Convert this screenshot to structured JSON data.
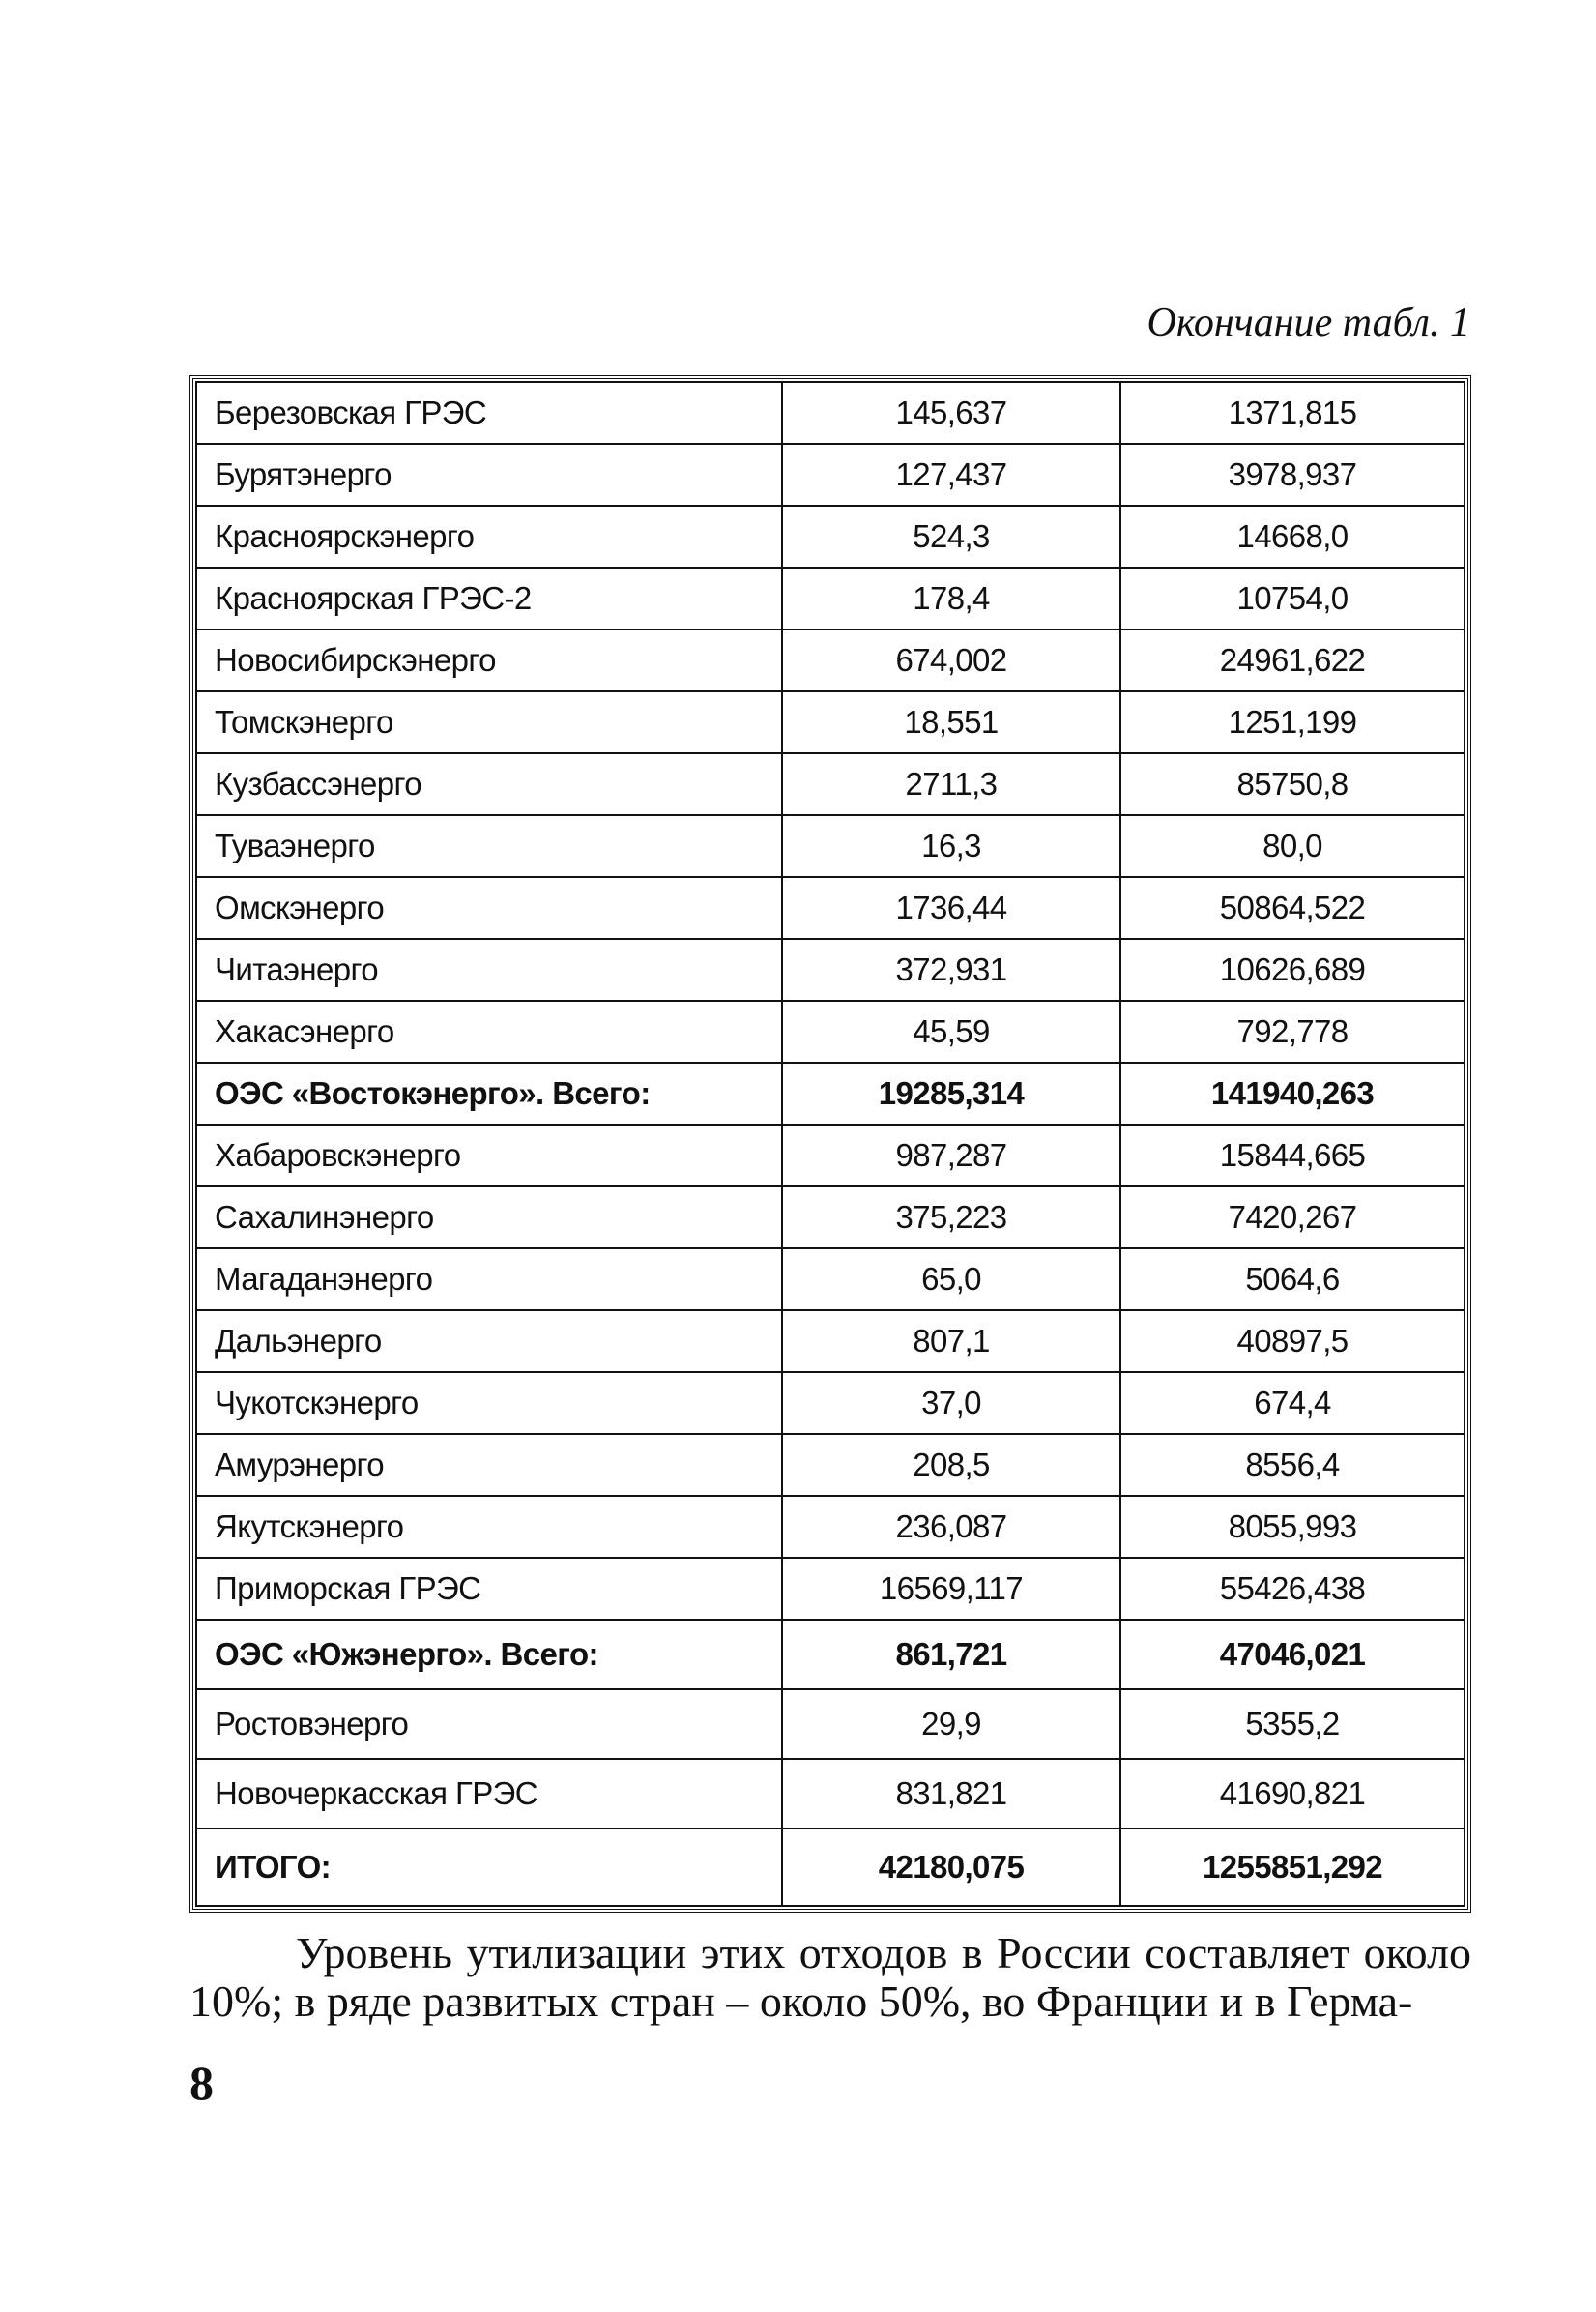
{
  "caption": "Окончание табл. 1",
  "rows": [
    {
      "name": "Березовская ГРЭС",
      "v1": "145,637",
      "v2": "1371,815"
    },
    {
      "name": "Бурятэнерго",
      "v1": "127,437",
      "v2": "3978,937"
    },
    {
      "name": "Красноярскэнерго",
      "v1": "524,3",
      "v2": "14668,0"
    },
    {
      "name": "Красноярская ГРЭС-2",
      "v1": "178,4",
      "v2": "10754,0"
    },
    {
      "name": "Новосибирскэнерго",
      "v1": "674,002",
      "v2": "24961,622"
    },
    {
      "name": "Томскэнерго",
      "v1": "18,551",
      "v2": "1251,199"
    },
    {
      "name": "Кузбассэнерго",
      "v1": "2711,3",
      "v2": "85750,8"
    },
    {
      "name": "Туваэнерго",
      "v1": "16,3",
      "v2": "80,0"
    },
    {
      "name": "Омскэнерго",
      "v1": "1736,44",
      "v2": "50864,522"
    },
    {
      "name": "Читаэнерго",
      "v1": "372,931",
      "v2": "10626,689"
    },
    {
      "name": "Хакасэнерго",
      "v1": "45,59",
      "v2": "792,778"
    },
    {
      "name": "ОЭС «Востокэнерго». Всего:",
      "v1": "19285,314",
      "v2": "141940,263",
      "bold": true
    },
    {
      "name": "Хабаровскэнерго",
      "v1": "987,287",
      "v2": "15844,665"
    },
    {
      "name": "Сахалинэнерго",
      "v1": "375,223",
      "v2": "7420,267"
    },
    {
      "name": "Магаданэнерго",
      "v1": "65,0",
      "v2": "5064,6"
    },
    {
      "name": "Дальэнерго",
      "v1": "807,1",
      "v2": "40897,5"
    },
    {
      "name": "Чукотскэнерго",
      "v1": "37,0",
      "v2": "674,4"
    },
    {
      "name": "Амурэнерго",
      "v1": "208,5",
      "v2": "8556,4"
    },
    {
      "name": "Якутскэнерго",
      "v1": "236,087",
      "v2": "8055,993"
    },
    {
      "name": "Приморская ГРЭС",
      "v1": "16569,117",
      "v2": "55426,438"
    },
    {
      "name": "ОЭС «Южэнерго». Всего:",
      "v1": "861,721",
      "v2": "47046,021",
      "bold": true,
      "tall": true
    },
    {
      "name": "Ростовэнерго",
      "v1": "29,9",
      "v2": "5355,2",
      "tall": true
    },
    {
      "name": "Новочеркасская ГРЭС",
      "v1": "831,821",
      "v2": "41690,821",
      "tall": true
    },
    {
      "name": "ИТОГО:",
      "v1": "42180,075",
      "v2": "1255851,292",
      "bold": true,
      "last": true
    }
  ],
  "paragraph": "Уровень утилизации этих отходов в России составляет около 10%; в ряде развитых стран – около 50%, во Франции и в Герма-",
  "page_number": "8"
}
